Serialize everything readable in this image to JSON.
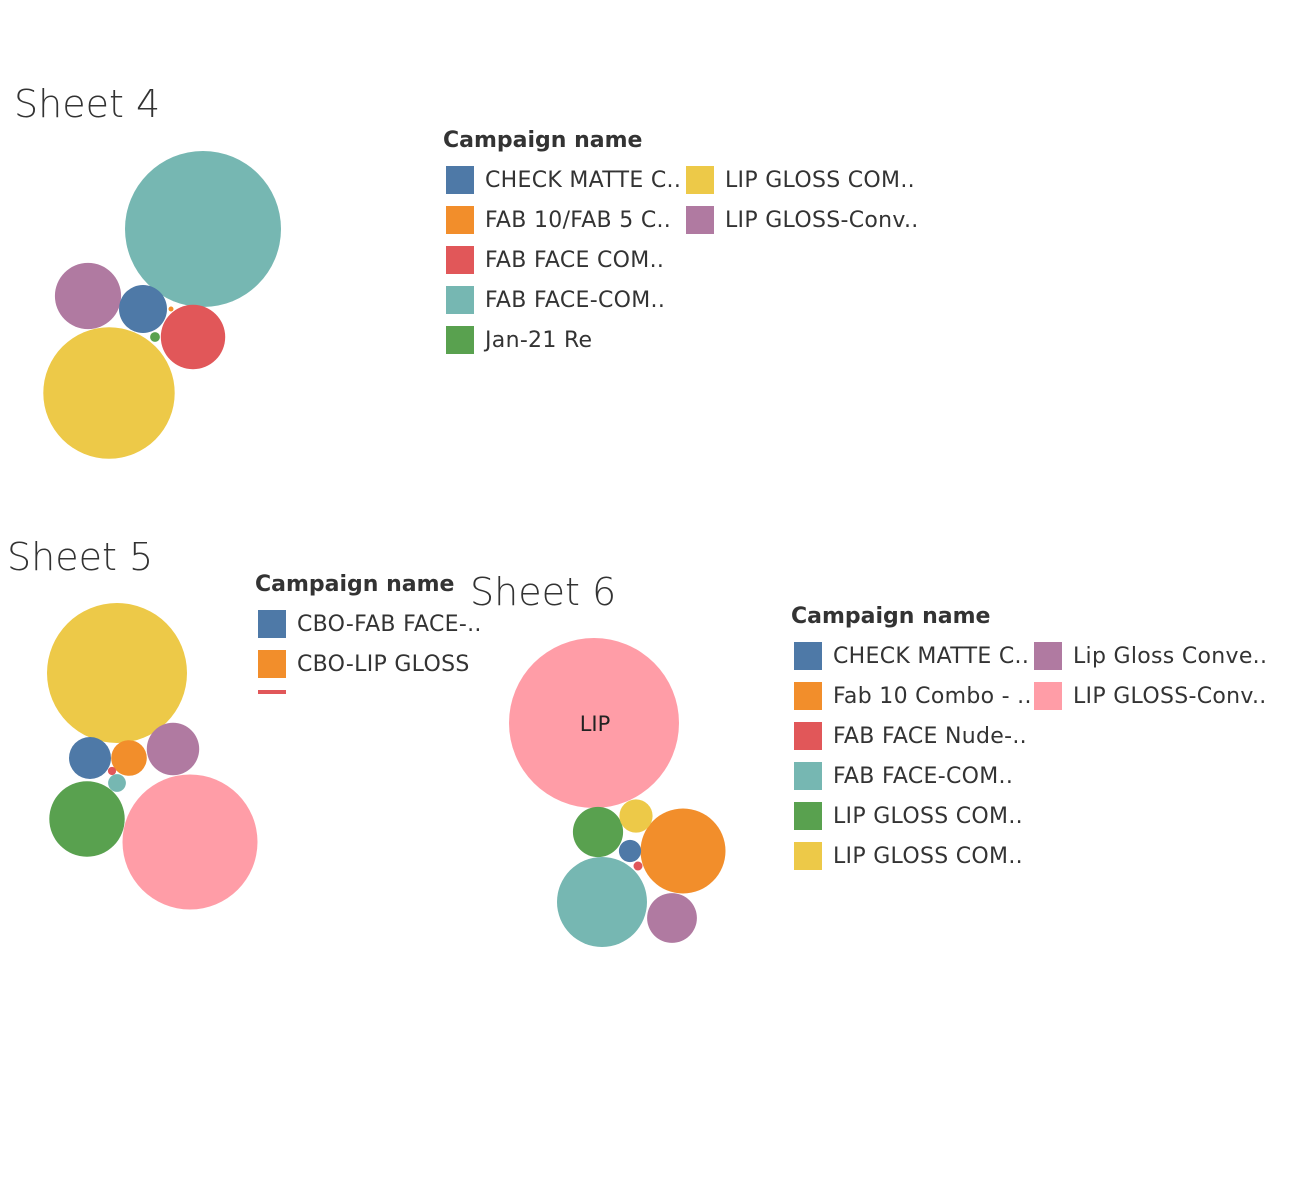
{
  "colors": {
    "blue": "#4e79a7",
    "orange": "#f28e2b",
    "red": "#e15759",
    "teal": "#76b7b2",
    "green": "#59a14f",
    "yellow": "#edc948",
    "purple": "#b07aa1",
    "pink": "#ff9da7"
  },
  "chart_data": [
    {
      "type": "bubble",
      "title": "Sheet 4",
      "legend_title": "Campaign name",
      "legend": [
        {
          "label": "CHECK MATTE C..",
          "color": "#4e79a7"
        },
        {
          "label": "FAB 10/FAB 5 C..",
          "color": "#f28e2b"
        },
        {
          "label": "FAB FACE COM..",
          "color": "#e15759"
        },
        {
          "label": "FAB FACE-COM..",
          "color": "#76b7b2"
        },
        {
          "label": "Jan-21 Re",
          "color": "#59a14f"
        },
        {
          "label": "LIP GLOSS COM..",
          "color": "#edc948"
        },
        {
          "label": "LIP GLOSS-Conv..",
          "color": "#b07aa1"
        }
      ],
      "bubbles": [
        {
          "series": "FAB FACE-COM..",
          "color": "#76b7b2",
          "relative_size": 1.0
        },
        {
          "series": "LIP GLOSS COM..",
          "color": "#edc948",
          "relative_size": 0.71
        },
        {
          "series": "FAB FACE COM..",
          "color": "#e15759",
          "relative_size": 0.17
        },
        {
          "series": "LIP GLOSS-Conv..",
          "color": "#b07aa1",
          "relative_size": 0.18
        },
        {
          "series": "CHECK MATTE C..",
          "color": "#4e79a7",
          "relative_size": 0.095
        },
        {
          "series": "Jan-21 Re",
          "color": "#59a14f",
          "relative_size": 0.004
        },
        {
          "series": "FAB 10/FAB 5 C..",
          "color": "#f28e2b",
          "relative_size": 0.001
        }
      ]
    },
    {
      "type": "bubble",
      "title": "Sheet 5",
      "legend_title": "Campaign name",
      "legend": [
        {
          "label": "CBO-FAB FACE-..",
          "color": "#4e79a7"
        },
        {
          "label": "CBO-LIP GLOSS",
          "color": "#f28e2b"
        },
        {
          "label": "",
          "color": "#e15759"
        }
      ],
      "bubbles": [
        {
          "color": "#edc948",
          "relative_size": 1.0
        },
        {
          "color": "#ff9da7",
          "relative_size": 0.93
        },
        {
          "color": "#59a14f",
          "relative_size": 0.29
        },
        {
          "color": "#b07aa1",
          "relative_size": 0.14
        },
        {
          "color": "#4e79a7",
          "relative_size": 0.09
        },
        {
          "color": "#f28e2b",
          "relative_size": 0.065
        },
        {
          "color": "#76b7b2",
          "relative_size": 0.016
        },
        {
          "color": "#e15759",
          "relative_size": 0.0035
        }
      ]
    },
    {
      "type": "bubble",
      "title": "Sheet 6",
      "legend_title": "Campaign name",
      "legend": [
        {
          "label": "CHECK MATTE C..",
          "color": "#4e79a7"
        },
        {
          "label": "Fab 10 Combo - ..",
          "color": "#f28e2b"
        },
        {
          "label": "FAB FACE Nude-..",
          "color": "#e15759"
        },
        {
          "label": "FAB FACE-COM..",
          "color": "#76b7b2"
        },
        {
          "label": "LIP GLOSS COM..",
          "color": "#59a14f"
        },
        {
          "label": "LIP GLOSS COM..",
          "color": "#edc948"
        },
        {
          "label": "Lip Gloss Conve..",
          "color": "#b07aa1"
        },
        {
          "label": "LIP GLOSS-Conv..",
          "color": "#ff9da7"
        }
      ],
      "bubbles": [
        {
          "series": "LIP GLOSS-Conv..",
          "color": "#ff9da7",
          "relative_size": 1.0,
          "label": "LIP"
        },
        {
          "series": "FAB FACE-COM..",
          "color": "#76b7b2",
          "relative_size": 0.28
        },
        {
          "series": "Fab 10 Combo - ..",
          "color": "#f28e2b",
          "relative_size": 0.25
        },
        {
          "series": "Lip Gloss Conve..",
          "color": "#b07aa1",
          "relative_size": 0.086
        },
        {
          "series": "LIP GLOSS COM..",
          "color": "#59a14f",
          "relative_size": 0.087
        },
        {
          "series": "LIP GLOSS COM..",
          "color": "#edc948",
          "relative_size": 0.038
        },
        {
          "series": "CHECK MATTE C..",
          "color": "#4e79a7",
          "relative_size": 0.017
        },
        {
          "series": "FAB FACE Nude-..",
          "color": "#e15759",
          "relative_size": 0.0028
        }
      ]
    }
  ]
}
